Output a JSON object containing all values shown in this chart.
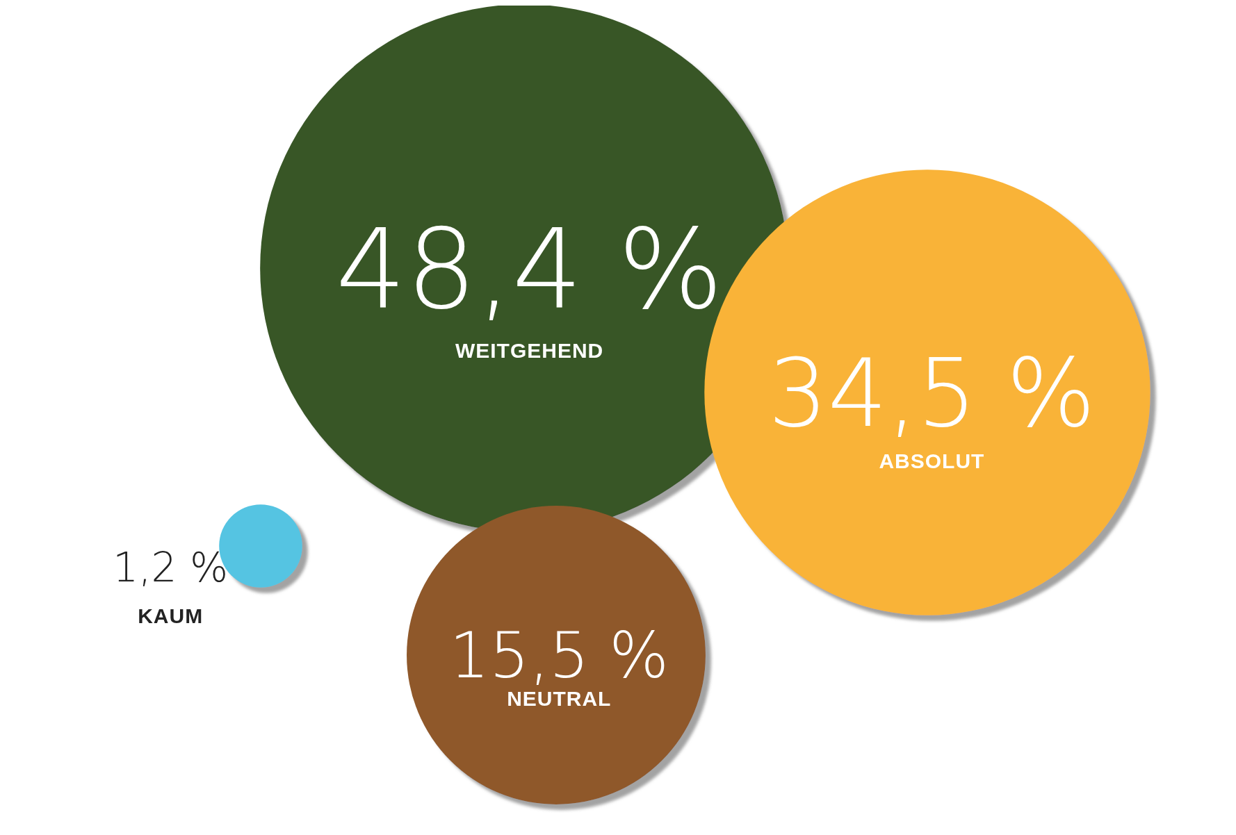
{
  "chart_data": {
    "type": "other",
    "categories": [
      "WEITGEHEND",
      "ABSOLUT",
      "NEUTRAL",
      "KAUM"
    ],
    "values": [
      48.4,
      34.5,
      15.5,
      1.2
    ],
    "value_labels": [
      "48,4 %",
      "34,5 %",
      "15,5 %",
      "1,2 %"
    ],
    "colors": [
      "#385627",
      "#f9b337",
      "#8f592a",
      "#55c4e2"
    ]
  }
}
